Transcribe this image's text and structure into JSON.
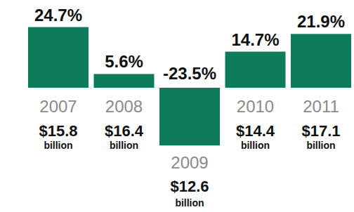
{
  "chart_data": {
    "type": "bar",
    "categories": [
      "2007",
      "2008",
      "2009",
      "2010",
      "2011"
    ],
    "values": [
      24.7,
      5.6,
      -23.5,
      14.7,
      21.9
    ],
    "value_labels": [
      "24.7%",
      "5.6%",
      "-23.5%",
      "14.7%",
      "21.9%"
    ],
    "color": "#0e7c5b",
    "ylim": [
      -30,
      30
    ],
    "data_labels": true,
    "tick_labels": false,
    "revenue": {
      "labels": [
        "$15.8",
        "$16.4",
        "$12.6",
        "$14.4",
        "$17.1"
      ],
      "unit": "billion"
    }
  }
}
